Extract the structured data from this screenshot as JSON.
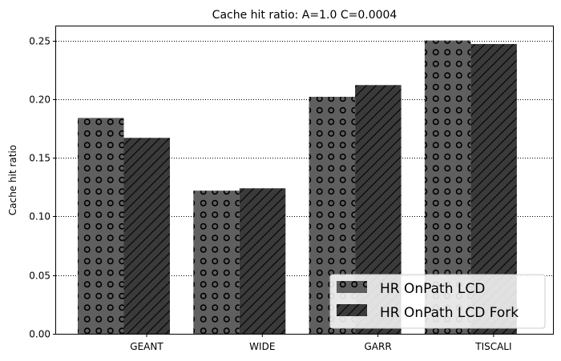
{
  "chart_data": {
    "type": "bar",
    "title": "Cache hit ratio: A=1.0 C=0.0004",
    "xlabel": "",
    "ylabel": "Cache hit ratio",
    "categories": [
      "GEANT",
      "WIDE",
      "GARR",
      "TISCALI"
    ],
    "series": [
      {
        "name": "HR OnPath LCD",
        "values": [
          0.184,
          0.122,
          0.202,
          0.25
        ],
        "color": "#5f5f5f",
        "hatch": "circles"
      },
      {
        "name": "HR OnPath LCD Fork",
        "values": [
          0.167,
          0.124,
          0.212,
          0.247
        ],
        "color": "#3a3a3a",
        "hatch": "diagonal"
      }
    ],
    "ylim": [
      0,
      0.262
    ],
    "yticks": [
      "0.00",
      "0.05",
      "0.10",
      "0.15",
      "0.20",
      "0.25"
    ],
    "grid": "y-dotted",
    "legend_position": "lower-right"
  }
}
